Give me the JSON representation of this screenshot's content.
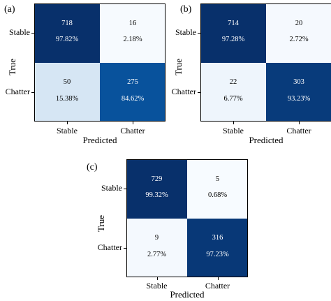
{
  "chart_data": [
    {
      "type": "heatmap",
      "panel_label": "(a)",
      "xlabel": "Predicted",
      "ylabel": "True",
      "x_categories": [
        "Stable",
        "Chatter"
      ],
      "y_categories": [
        "Stable",
        "Chatter"
      ],
      "counts": [
        [
          718,
          16
        ],
        [
          50,
          275
        ]
      ],
      "percent_labels": [
        [
          "97.82%",
          "2.18%"
        ],
        [
          "15.38%",
          "84.62%"
        ]
      ],
      "colors": [
        [
          "#08306b",
          "#f6fafe"
        ],
        [
          "#d6e6f4",
          "#08529c"
        ]
      ],
      "text_colors": [
        [
          "#ffffff",
          "#000000"
        ],
        [
          "#000000",
          "#ffffff"
        ]
      ]
    },
    {
      "type": "heatmap",
      "panel_label": "(b)",
      "xlabel": "Predicted",
      "ylabel": "True",
      "x_categories": [
        "Stable",
        "Chatter"
      ],
      "y_categories": [
        "Stable",
        "Chatter"
      ],
      "counts": [
        [
          714,
          20
        ],
        [
          22,
          303
        ]
      ],
      "percent_labels": [
        [
          "97.28%",
          "2.72%"
        ],
        [
          "6.77%",
          "93.23%"
        ]
      ],
      "colors": [
        [
          "#08306b",
          "#f5f9fe"
        ],
        [
          "#eef5fc",
          "#083b7b"
        ]
      ],
      "text_colors": [
        [
          "#ffffff",
          "#000000"
        ],
        [
          "#000000",
          "#ffffff"
        ]
      ]
    },
    {
      "type": "heatmap",
      "panel_label": "(c)",
      "xlabel": "Predicted",
      "ylabel": "True",
      "x_categories": [
        "Stable",
        "Chatter"
      ],
      "y_categories": [
        "Stable",
        "Chatter"
      ],
      "counts": [
        [
          729,
          5
        ],
        [
          9,
          316
        ]
      ],
      "percent_labels": [
        [
          "99.32%",
          "0.68%"
        ],
        [
          "2.77%",
          "97.23%"
        ]
      ],
      "colors": [
        [
          "#08306b",
          "#f7fbff"
        ],
        [
          "#f4f9fe",
          "#083877"
        ]
      ],
      "text_colors": [
        [
          "#ffffff",
          "#000000"
        ],
        [
          "#000000",
          "#ffffff"
        ]
      ]
    }
  ]
}
